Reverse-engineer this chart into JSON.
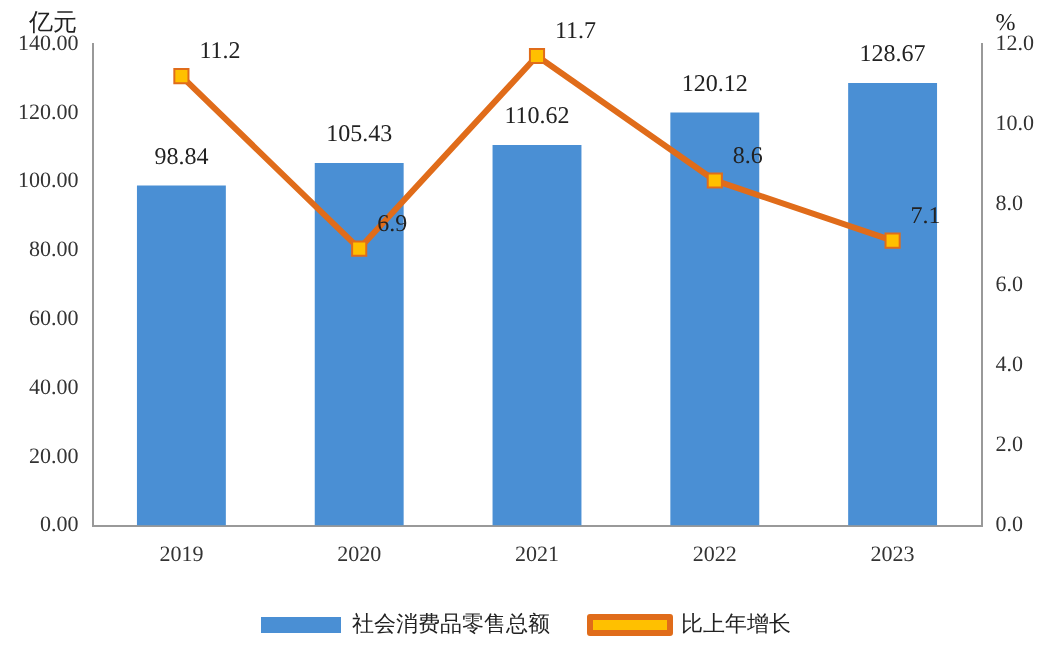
{
  "chart_data": {
    "type": "bar",
    "categories": [
      "2019",
      "2020",
      "2021",
      "2022",
      "2023"
    ],
    "ylabel": "亿元",
    "y2label": "%",
    "series": [
      {
        "name": "社会消费品零售总额",
        "color": "#4a8fd4",
        "values": [
          98.84,
          105.43,
          110.62,
          120.12,
          128.67
        ]
      },
      {
        "name": "比上年增长",
        "type": "line",
        "axis": "y2",
        "color": "#e06c1a",
        "values": [
          11.2,
          6.9,
          11.7,
          8.6,
          7.1
        ]
      }
    ],
    "ylim": [
      0,
      140
    ],
    "yticks": [
      {
        "value": 0,
        "label": "0.00"
      },
      {
        "value": 20,
        "label": "20.00"
      },
      {
        "value": 40,
        "label": "40.00"
      },
      {
        "value": 60,
        "label": "60.00"
      },
      {
        "value": 80,
        "label": "80.00"
      },
      {
        "value": 100,
        "label": "100.00"
      },
      {
        "value": 120,
        "label": "120.00"
      },
      {
        "value": 140,
        "label": "140.00"
      }
    ],
    "y2lim": [
      0,
      12
    ],
    "y2ticks": [
      {
        "value": 0,
        "label": "0.0"
      },
      {
        "value": 2,
        "label": "2.0"
      },
      {
        "value": 4,
        "label": "4.0"
      },
      {
        "value": 6,
        "label": "6.0"
      },
      {
        "value": 8,
        "label": "8.0"
      },
      {
        "value": 10,
        "label": "10.0"
      },
      {
        "value": 12,
        "label": "12.0"
      }
    ],
    "marker": "square",
    "data_labels": true,
    "grid": false,
    "legend": "bottom"
  }
}
